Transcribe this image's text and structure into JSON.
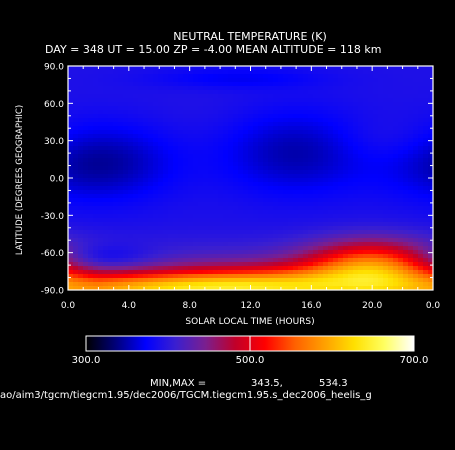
{
  "chart_data": {
    "type": "heatmap",
    "title": "NEUTRAL TEMPERATURE (K)",
    "subtitle": "DAY = 348   UT = 15.00   ZP =    -4.00   MEAN ALTITUDE = 118 km",
    "xlabel": "SOLAR LOCAL TIME (HOURS)",
    "ylabel": "LATITUDE (DEGREES GEOGRAPHIC)",
    "x_ticks": [
      "0.0",
      "4.0",
      "8.0",
      "12.0",
      "16.0",
      "20.0",
      "0.0"
    ],
    "y_ticks": [
      "90.0",
      "60.0",
      "30.0",
      "0.0",
      "-30.0",
      "-60.0",
      "-90.0"
    ],
    "xlim": [
      0,
      24
    ],
    "ylim": [
      -90,
      90
    ],
    "grid": false,
    "colorbar": {
      "min_label": "300.0",
      "mid_label": "500.0",
      "max_label": "700.0",
      "range": [
        300,
        700
      ],
      "colors": [
        "#000000",
        "#00007a",
        "#0000ff",
        "#3a1fd0",
        "#7a1f8f",
        "#c0002a",
        "#ff0000",
        "#ff6000",
        "#ffa000",
        "#ffe000",
        "#ffff60",
        "#ffffff"
      ]
    },
    "min_max_label": "MIN,MAX =",
    "min_value": "343.5,",
    "max_value": "534.3",
    "field": [
      {
        "lt": 2,
        "lat": 12,
        "value": 343.5,
        "spread_lt": 3.5,
        "spread_lat": 22
      },
      {
        "lt": 15,
        "lat": 20,
        "value": 350,
        "spread_lt": 3.5,
        "spread_lat": 24
      },
      {
        "lt": 9,
        "lat": 45,
        "value": 395,
        "spread_lt": 2.5,
        "spread_lat": 20
      },
      {
        "lt": 21,
        "lat": 30,
        "value": 405,
        "spread_lt": 2.5,
        "spread_lat": 14
      },
      {
        "lt": 11,
        "lat": 80,
        "value": 370,
        "spread_lt": 4,
        "spread_lat": 6
      },
      {
        "lt": 2,
        "lat": -65,
        "value": 350,
        "spread_lt": 2.5,
        "spread_lat": 8
      },
      {
        "lt": 20,
        "lat": -70,
        "value": 534.3,
        "spread_lt": 3,
        "spread_lat": 14
      },
      {
        "lt": 14,
        "lat": -85,
        "value": 500,
        "spread_lt": 6,
        "spread_lat": 10
      },
      {
        "lt": 6,
        "lat": -88,
        "value": 485,
        "spread_lt": 6,
        "spread_lat": 8
      }
    ]
  },
  "footer": {
    "path": "ao/aim3/tgcm/tiegcm1.95/dec2006/TGCM.tiegcm1.95.s_dec2006_heelis_g"
  }
}
